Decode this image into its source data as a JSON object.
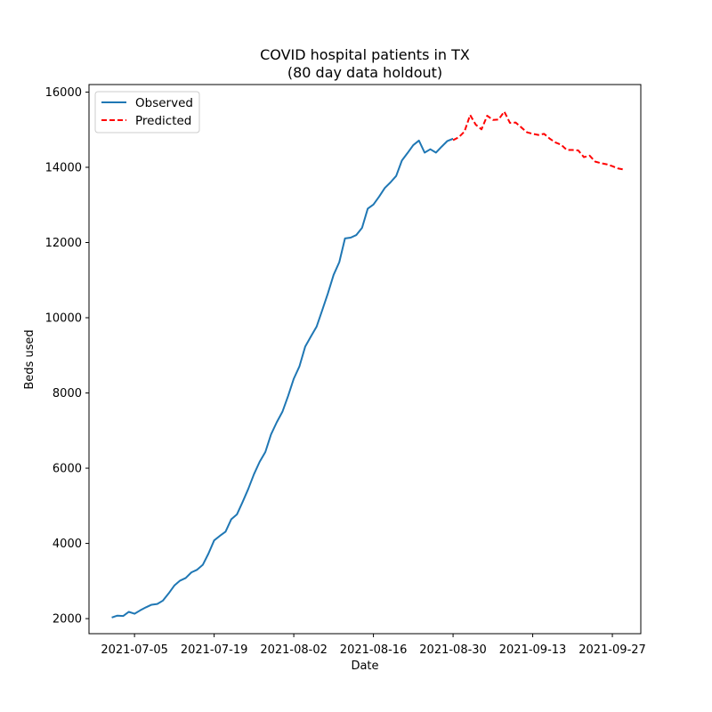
{
  "chart_data": {
    "type": "line",
    "title_lines": [
      "COVID hospital patients in TX",
      "(80 day data holdout)"
    ],
    "xlabel": "Date",
    "ylabel": "Beds used",
    "ylim": [
      1600,
      16200
    ],
    "yticks": [
      2000,
      4000,
      6000,
      8000,
      10000,
      12000,
      14000,
      16000
    ],
    "yticklabels": [
      "2000",
      "4000",
      "6000",
      "8000",
      "10000",
      "12000",
      "14000",
      "16000"
    ],
    "xlim": [
      "2021-06-27",
      "2021-10-02"
    ],
    "xticks": [
      "2021-07-05",
      "2021-07-19",
      "2021-08-02",
      "2021-08-16",
      "2021-08-30",
      "2021-09-13",
      "2021-09-27"
    ],
    "xticklabels": [
      "2021-07-05",
      "2021-07-19",
      "2021-08-02",
      "2021-08-16",
      "2021-08-30",
      "2021-09-13",
      "2021-09-27"
    ],
    "legend_location": "upper left",
    "grid": false,
    "series": [
      {
        "name": "Observed",
        "color": "#1f77b4",
        "style": "solid",
        "x": [
          "2021-07-01",
          "2021-07-02",
          "2021-07-03",
          "2021-07-04",
          "2021-07-05",
          "2021-07-06",
          "2021-07-07",
          "2021-07-08",
          "2021-07-09",
          "2021-07-10",
          "2021-07-11",
          "2021-07-12",
          "2021-07-13",
          "2021-07-14",
          "2021-07-15",
          "2021-07-16",
          "2021-07-17",
          "2021-07-18",
          "2021-07-19",
          "2021-07-20",
          "2021-07-21",
          "2021-07-22",
          "2021-07-23",
          "2021-07-24",
          "2021-07-25",
          "2021-07-26",
          "2021-07-27",
          "2021-07-28",
          "2021-07-29",
          "2021-07-30",
          "2021-07-31",
          "2021-08-01",
          "2021-08-02",
          "2021-08-03",
          "2021-08-04",
          "2021-08-05",
          "2021-08-06",
          "2021-08-07",
          "2021-08-08",
          "2021-08-09",
          "2021-08-10",
          "2021-08-11",
          "2021-08-12",
          "2021-08-13",
          "2021-08-14",
          "2021-08-15",
          "2021-08-16",
          "2021-08-17",
          "2021-08-18",
          "2021-08-19",
          "2021-08-20",
          "2021-08-21",
          "2021-08-22",
          "2021-08-23",
          "2021-08-24",
          "2021-08-25",
          "2021-08-26",
          "2021-08-27",
          "2021-08-28",
          "2021-08-29",
          "2021-08-30"
        ],
        "y": [
          2030,
          2080,
          2070,
          2180,
          2130,
          2220,
          2300,
          2370,
          2390,
          2480,
          2670,
          2880,
          3010,
          3080,
          3230,
          3300,
          3430,
          3730,
          4080,
          4200,
          4310,
          4640,
          4770,
          5100,
          5450,
          5840,
          6170,
          6430,
          6900,
          7220,
          7500,
          7920,
          8380,
          8710,
          9230,
          9500,
          9760,
          10200,
          10650,
          11140,
          11480,
          12110,
          12130,
          12200,
          12390,
          12900,
          13010,
          13220,
          13450,
          13600,
          13770,
          14180,
          14380,
          14590,
          14710,
          14390,
          14480,
          14390,
          14550,
          14700,
          14760
        ]
      },
      {
        "name": "Predicted",
        "color": "#ff0000",
        "style": "dashed",
        "x": [
          "2021-08-30",
          "2021-08-31",
          "2021-09-01",
          "2021-09-02",
          "2021-09-03",
          "2021-09-04",
          "2021-09-05",
          "2021-09-06",
          "2021-09-07",
          "2021-09-08",
          "2021-09-09",
          "2021-09-10",
          "2021-09-11",
          "2021-09-12",
          "2021-09-13",
          "2021-09-14",
          "2021-09-15",
          "2021-09-16",
          "2021-09-17",
          "2021-09-18",
          "2021-09-19",
          "2021-09-20",
          "2021-09-21",
          "2021-09-22",
          "2021-09-23",
          "2021-09-24",
          "2021-09-25",
          "2021-09-26",
          "2021-09-27",
          "2021-09-28",
          "2021-09-29"
        ],
        "y": [
          14720,
          14800,
          14950,
          15390,
          15130,
          15010,
          15370,
          15260,
          15270,
          15480,
          15180,
          15190,
          15060,
          14930,
          14890,
          14860,
          14890,
          14760,
          14660,
          14600,
          14460,
          14460,
          14450,
          14270,
          14310,
          14150,
          14110,
          14080,
          14030,
          13970,
          13940
        ]
      }
    ]
  }
}
